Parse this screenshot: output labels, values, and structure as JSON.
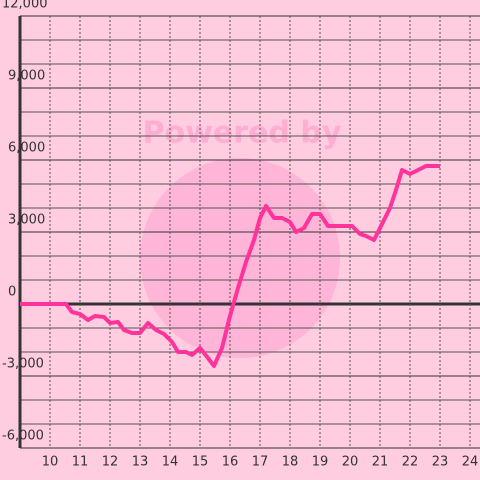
{
  "chart_data": {
    "type": "line",
    "watermark": "Powered by",
    "color": "#ff3399",
    "x": [
      9,
      10.533,
      10.733,
      11,
      11.267,
      11.5,
      11.8,
      12,
      12.267,
      12.467,
      12.733,
      13,
      13.267,
      13.533,
      13.8,
      14.067,
      14.267,
      14.533,
      14.733,
      15,
      15.267,
      15.467,
      15.733,
      16,
      16.267,
      16.533,
      16.8,
      17,
      17.2,
      17.467,
      17.733,
      18,
      18.2,
      18.467,
      18.733,
      19,
      19.267,
      19.8,
      20.067,
      20.333,
      20.533,
      20.8,
      21,
      21.333,
      21.533,
      21.733,
      22,
      22.267,
      22.533,
      23
    ],
    "values": [
      0,
      0,
      -333,
      -417,
      -667,
      -500,
      -542,
      -792,
      -750,
      -1083,
      -1208,
      -1208,
      -792,
      -1083,
      -1250,
      -1583,
      -2000,
      -2000,
      -2125,
      -1833,
      -2250,
      -2583,
      -1833,
      -500,
      667,
      1750,
      2667,
      3583,
      4083,
      3583,
      3583,
      3417,
      3000,
      3167,
      3750,
      3750,
      3250,
      3250,
      3250,
      2917,
      2833,
      2667,
      3167,
      4000,
      4750,
      5583,
      5417,
      5583,
      5750,
      5750
    ],
    "xlim": [
      9,
      24.333
    ],
    "xticks": [
      10,
      11,
      12,
      13,
      14,
      15,
      16,
      17,
      18,
      19,
      20,
      21,
      22,
      23,
      24
    ],
    "ylim": [
      -6000,
      12000
    ],
    "yticks": [
      {
        "value": -6000,
        "label": "-6,000"
      },
      {
        "value": -3000,
        "label": "-3,000"
      },
      0,
      {
        "value": 3000,
        "label": "3,000"
      },
      {
        "value": 6000,
        "label": "6,000"
      },
      {
        "value": 9000,
        "label": "9,000"
      },
      {
        "value": 12000,
        "label": "12,000"
      }
    ],
    "minor_step": 1000,
    "grid": true
  }
}
